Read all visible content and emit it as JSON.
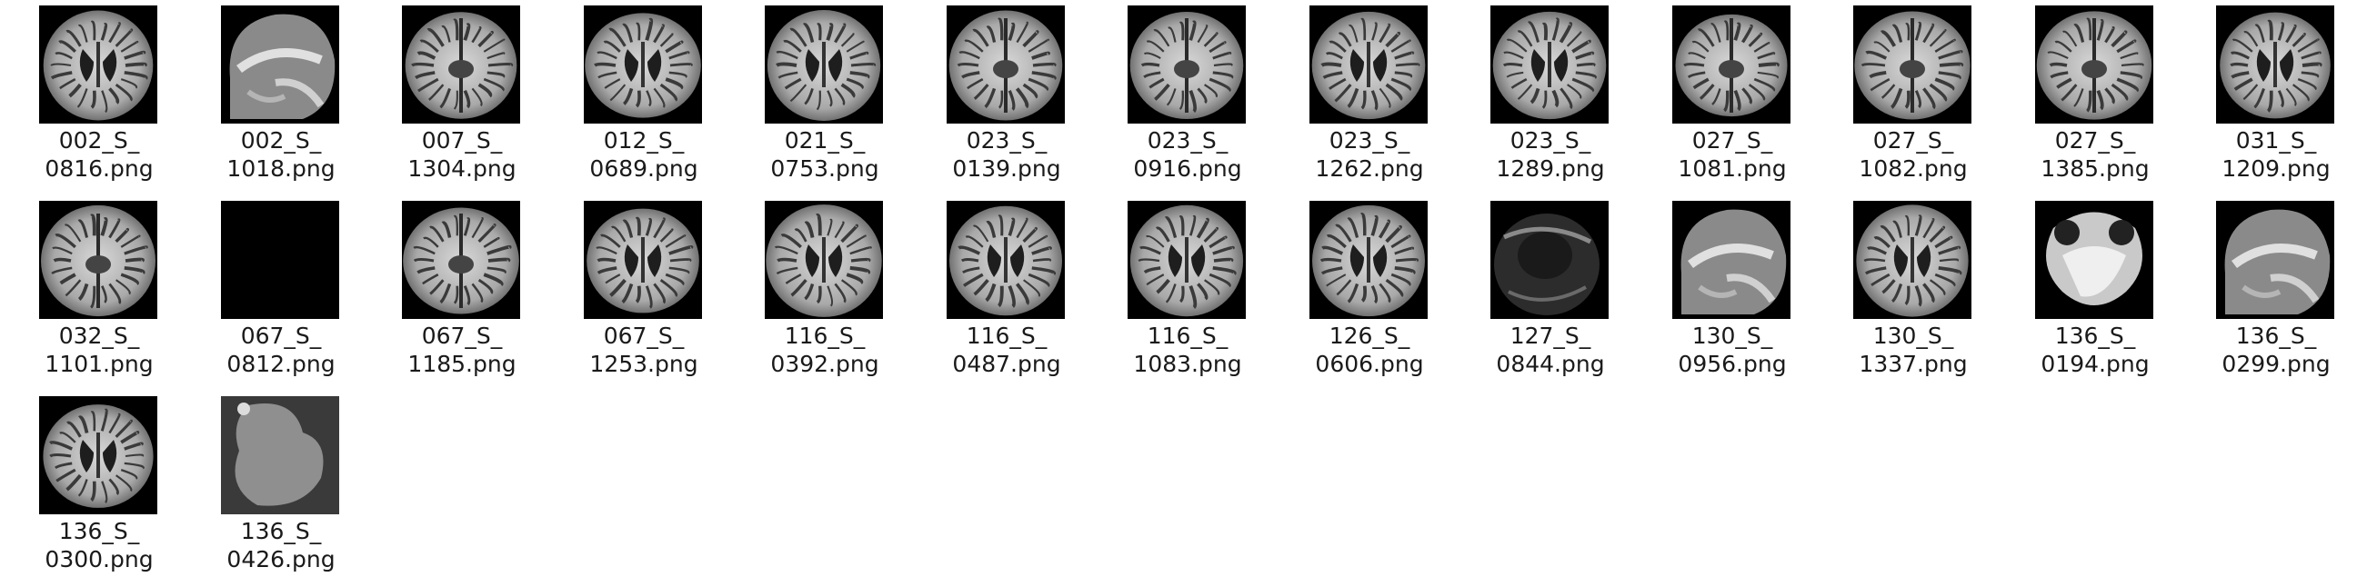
{
  "files": [
    {
      "line1": "002_S_",
      "line2": "0816.png",
      "thumbnail": "brain-axial-ventricles"
    },
    {
      "line1": "002_S_",
      "line2": "1018.png",
      "thumbnail": "brain-sagittal"
    },
    {
      "line1": "007_S_",
      "line2": "1304.png",
      "thumbnail": "brain-axial-low"
    },
    {
      "line1": "012_S_",
      "line2": "0689.png",
      "thumbnail": "brain-axial-ventricles"
    },
    {
      "line1": "021_S_",
      "line2": "0753.png",
      "thumbnail": "brain-axial-ventricles"
    },
    {
      "line1": "023_S_",
      "line2": "0139.png",
      "thumbnail": "brain-axial-low"
    },
    {
      "line1": "023_S_",
      "line2": "0916.png",
      "thumbnail": "brain-axial-low"
    },
    {
      "line1": "023_S_",
      "line2": "1262.png",
      "thumbnail": "brain-axial-ventricles"
    },
    {
      "line1": "023_S_",
      "line2": "1289.png",
      "thumbnail": "brain-axial-ventricles"
    },
    {
      "line1": "027_S_",
      "line2": "1081.png",
      "thumbnail": "brain-axial-low"
    },
    {
      "line1": "027_S_",
      "line2": "1082.png",
      "thumbnail": "brain-axial-low"
    },
    {
      "line1": "027_S_",
      "line2": "1385.png",
      "thumbnail": "brain-axial-low"
    },
    {
      "line1": "031_S_",
      "line2": "1209.png",
      "thumbnail": "brain-axial-ventricles"
    },
    {
      "line1": "032_S_",
      "line2": "1101.png",
      "thumbnail": "brain-axial-low"
    },
    {
      "line1": "067_S_",
      "line2": "0812.png",
      "thumbnail": "blank-black"
    },
    {
      "line1": "067_S_",
      "line2": "1185.png",
      "thumbnail": "brain-axial-low"
    },
    {
      "line1": "067_S_",
      "line2": "1253.png",
      "thumbnail": "brain-axial-ventricles"
    },
    {
      "line1": "116_S_",
      "line2": "0392.png",
      "thumbnail": "brain-axial-ventricles"
    },
    {
      "line1": "116_S_",
      "line2": "0487.png",
      "thumbnail": "brain-axial-ventricles"
    },
    {
      "line1": "116_S_",
      "line2": "1083.png",
      "thumbnail": "brain-axial-ventricles"
    },
    {
      "line1": "126_S_",
      "line2": "0606.png",
      "thumbnail": "brain-axial-ventricles"
    },
    {
      "line1": "127_S_",
      "line2": "0844.png",
      "thumbnail": "brain-dark-round"
    },
    {
      "line1": "130_S_",
      "line2": "0956.png",
      "thumbnail": "brain-sagittal"
    },
    {
      "line1": "130_S_",
      "line2": "1337.png",
      "thumbnail": "brain-axial-ventricles"
    },
    {
      "line1": "136_S_",
      "line2": "0194.png",
      "thumbnail": "brain-axial-blob"
    },
    {
      "line1": "136_S_",
      "line2": "0299.png",
      "thumbnail": "brain-sagittal"
    },
    {
      "line1": "136_S_",
      "line2": "0300.png",
      "thumbnail": "brain-axial-ventricles"
    },
    {
      "line1": "136_S_",
      "line2": "0426.png",
      "thumbnail": "brain-gray-blob"
    }
  ]
}
